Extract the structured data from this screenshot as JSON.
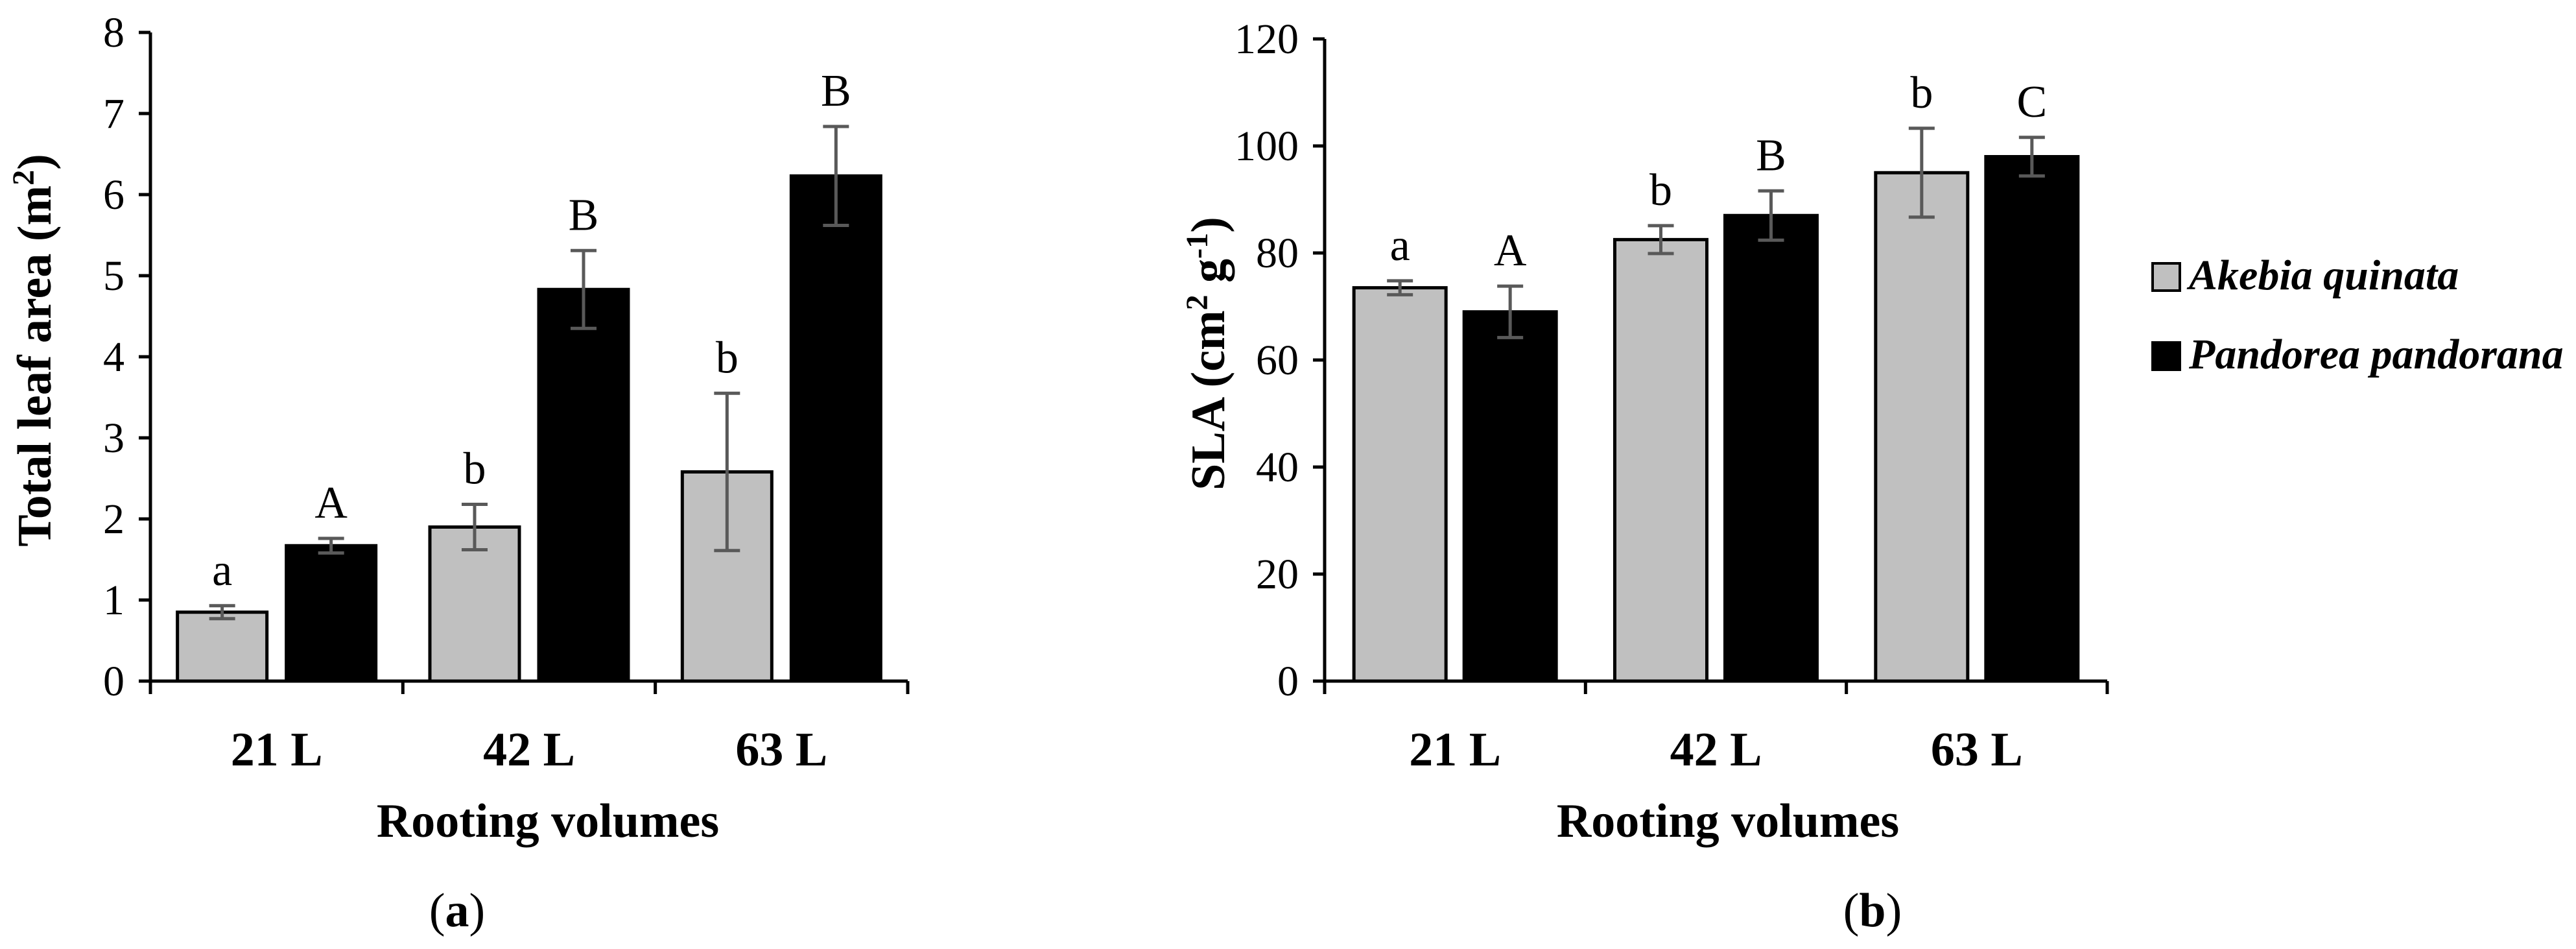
{
  "chart_data": [
    {
      "type": "bar",
      "panel": "a",
      "title": "",
      "xlabel": "Rooting volumes",
      "ylabel_main": "Total leaf area (m",
      "ylabel_sup": "2",
      "ylabel_end": ")",
      "ylim": [
        0,
        8
      ],
      "yticks": [
        "0",
        "1",
        "2",
        "3",
        "4",
        "5",
        "6",
        "7",
        "8"
      ],
      "categories": [
        "21 L",
        "42 L",
        "63 L"
      ],
      "series": [
        {
          "name": "Akebia quinata",
          "color": "#c0c0c0",
          "values": [
            0.85,
            1.9,
            2.58
          ],
          "errors": [
            0.08,
            0.28,
            0.97
          ],
          "letters": [
            "a",
            "b",
            "b"
          ]
        },
        {
          "name": "Pandorea pandorana",
          "color": "#000000",
          "values": [
            1.67,
            4.83,
            6.23
          ],
          "errors": [
            0.09,
            0.48,
            0.61
          ],
          "letters": [
            "A",
            "B",
            "B"
          ]
        }
      ]
    },
    {
      "type": "bar",
      "panel": "b",
      "title": "",
      "xlabel": "Rooting volumes",
      "ylabel_main": "SLA (cm",
      "ylabel_sup": "2",
      "ylabel_mid": " g",
      "ylabel_sup2": "-1",
      "ylabel_end": ")",
      "ylim": [
        0,
        120
      ],
      "yticks": [
        "0",
        "20",
        "40",
        "60",
        "80",
        "100",
        "120"
      ],
      "categories": [
        "21 L",
        "42 L",
        "63 L"
      ],
      "series": [
        {
          "name": "Akebia quinata",
          "color": "#c0c0c0",
          "values": [
            73.5,
            82.5,
            95
          ],
          "errors": [
            1.3,
            2.6,
            8.3
          ],
          "letters": [
            "a",
            "b",
            "b"
          ]
        },
        {
          "name": "Pandorea pandorana",
          "color": "#000000",
          "values": [
            69,
            87,
            98
          ],
          "errors": [
            4.8,
            4.6,
            3.6
          ],
          "letters": [
            "A",
            "B",
            "C"
          ]
        }
      ]
    }
  ],
  "legend": {
    "position": "right",
    "items": [
      {
        "label": "Akebia quinata",
        "color": "#c0c0c0"
      },
      {
        "label": "Pandorea pandorana",
        "color": "#000000"
      }
    ]
  },
  "captions": {
    "a": {
      "open": "(",
      "letter": "a",
      "close": ")"
    },
    "b": {
      "open": "(",
      "letter": "b",
      "close": ")"
    }
  }
}
